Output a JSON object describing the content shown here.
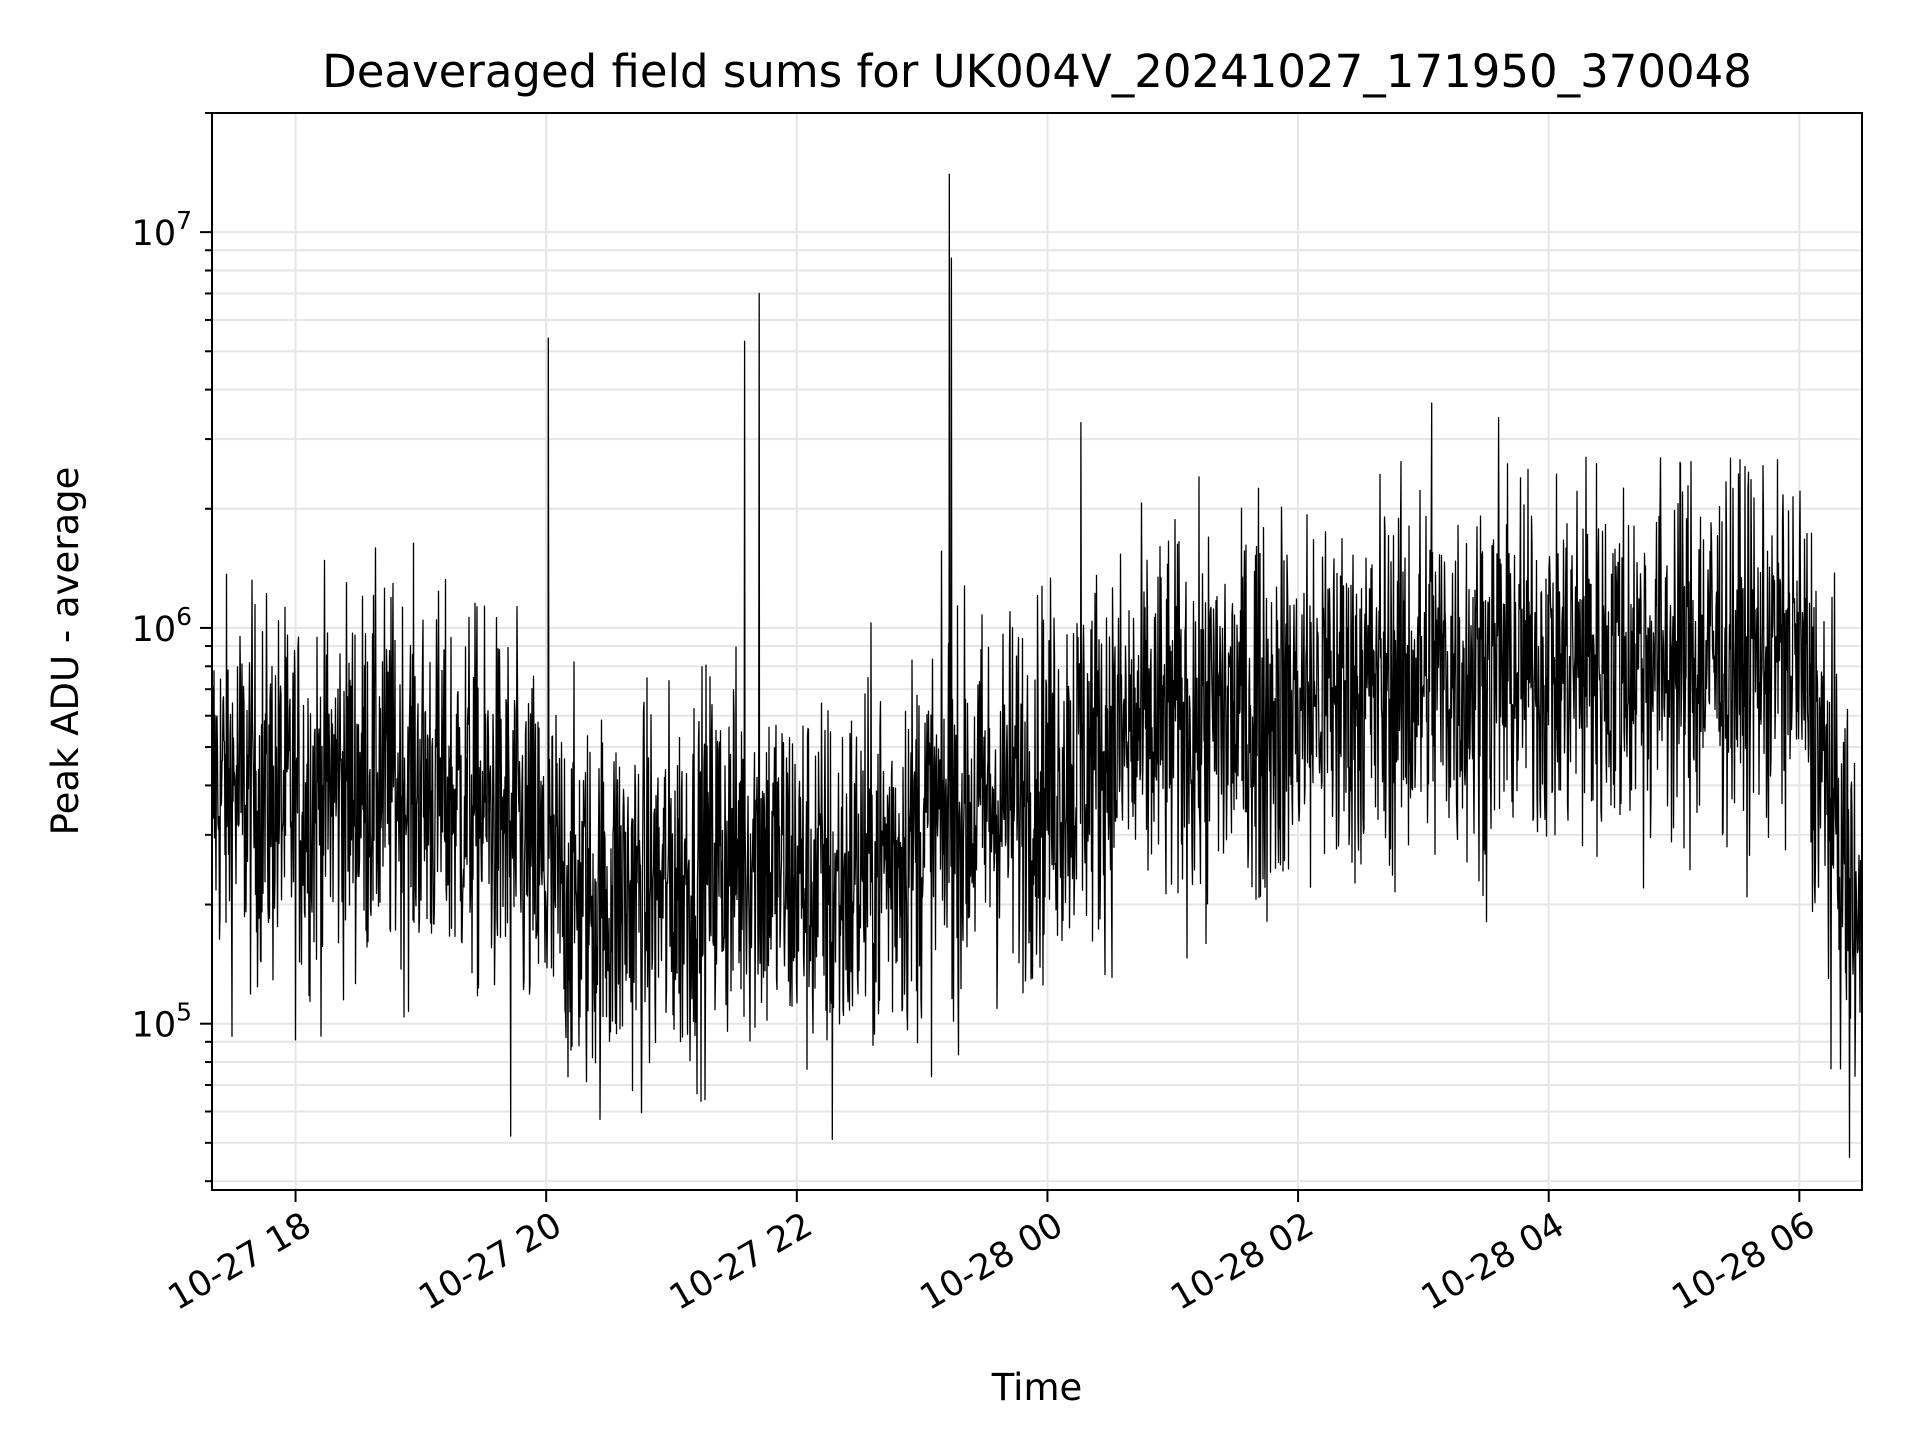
{
  "chart_data": {
    "type": "line",
    "title": "Deaveraged field sums for UK004V_20241027_171950_370048",
    "xlabel": "Time",
    "ylabel": "Peak ADU - average",
    "yscale": "log",
    "ylim": [
      38000,
      20000000
    ],
    "xlim": [
      "2024-10-27 17:20",
      "2024-10-28 06:30"
    ],
    "grid": true,
    "line_color": "#000000",
    "grid_color": "#e6e6e6",
    "x_ticks": [
      {
        "value": "2024-10-27 18:00",
        "label": "10-27 18"
      },
      {
        "value": "2024-10-27 20:00",
        "label": "10-27 20"
      },
      {
        "value": "2024-10-27 22:00",
        "label": "10-27 22"
      },
      {
        "value": "2024-10-28 00:00",
        "label": "10-28 00"
      },
      {
        "value": "2024-10-28 02:00",
        "label": "10-28 02"
      },
      {
        "value": "2024-10-28 04:00",
        "label": "10-28 04"
      },
      {
        "value": "2024-10-28 06:00",
        "label": "10-28 06"
      }
    ],
    "y_ticks": [
      {
        "value": 100000,
        "base": "10",
        "exp": "5"
      },
      {
        "value": 1000000,
        "base": "10",
        "exp": "6"
      },
      {
        "value": 10000000,
        "base": "10",
        "exp": "7"
      }
    ],
    "series": [
      {
        "x": [
          "2024-10-27 17:20",
          "2024-10-27 17:40",
          "2024-10-27 18:00",
          "2024-10-27 18:20",
          "2024-10-27 18:40",
          "2024-10-27 19:00",
          "2024-10-27 19:20",
          "2024-10-27 19:40",
          "2024-10-27 20:00",
          "2024-10-27 20:20",
          "2024-10-27 20:40",
          "2024-10-27 21:00",
          "2024-10-27 21:20",
          "2024-10-27 21:40",
          "2024-10-27 22:00",
          "2024-10-27 22:20",
          "2024-10-27 22:40",
          "2024-10-27 23:00",
          "2024-10-27 23:20",
          "2024-10-27 23:40",
          "2024-10-28 00:00",
          "2024-10-28 00:20",
          "2024-10-28 00:40",
          "2024-10-28 01:00",
          "2024-10-28 01:20",
          "2024-10-28 01:40",
          "2024-10-28 02:00",
          "2024-10-28 02:20",
          "2024-10-28 02:40",
          "2024-10-28 03:00",
          "2024-10-28 03:20",
          "2024-10-28 03:40",
          "2024-10-28 04:00",
          "2024-10-28 04:20",
          "2024-10-28 04:40",
          "2024-10-28 05:00",
          "2024-10-28 05:20",
          "2024-10-28 05:40",
          "2024-10-28 06:00",
          "2024-10-28 06:15",
          "2024-10-28 06:30"
        ],
        "y": [
          400000,
          380000,
          360000,
          400000,
          420000,
          400000,
          370000,
          330000,
          230000,
          200000,
          210000,
          220000,
          260000,
          270000,
          230000,
          220000,
          260000,
          300000,
          340000,
          370000,
          420000,
          470000,
          530000,
          570000,
          590000,
          620000,
          650000,
          680000,
          710000,
          740000,
          770000,
          790000,
          800000,
          820000,
          840000,
          850000,
          860000,
          870000,
          860000,
          350000,
          150000
        ],
        "peaks": [
          {
            "x": "2024-10-27 20:01",
            "y": 5400000
          },
          {
            "x": "2024-10-27 21:35",
            "y": 5300000
          },
          {
            "x": "2024-10-27 21:42",
            "y": 7000000
          },
          {
            "x": "2024-10-27 23:13",
            "y": 14000000
          },
          {
            "x": "2024-10-27 23:14",
            "y": 8600000
          },
          {
            "x": "2024-10-28 00:16",
            "y": 3300000
          },
          {
            "x": "2024-10-28 03:04",
            "y": 3700000
          },
          {
            "x": "2024-10-28 03:36",
            "y": 3400000
          }
        ],
        "troughs": [
          {
            "x": "2024-10-27 19:43",
            "y": 52000
          },
          {
            "x": "2024-10-27 22:17",
            "y": 51000
          },
          {
            "x": "2024-10-28 06:24",
            "y": 46000
          }
        ]
      }
    ]
  }
}
